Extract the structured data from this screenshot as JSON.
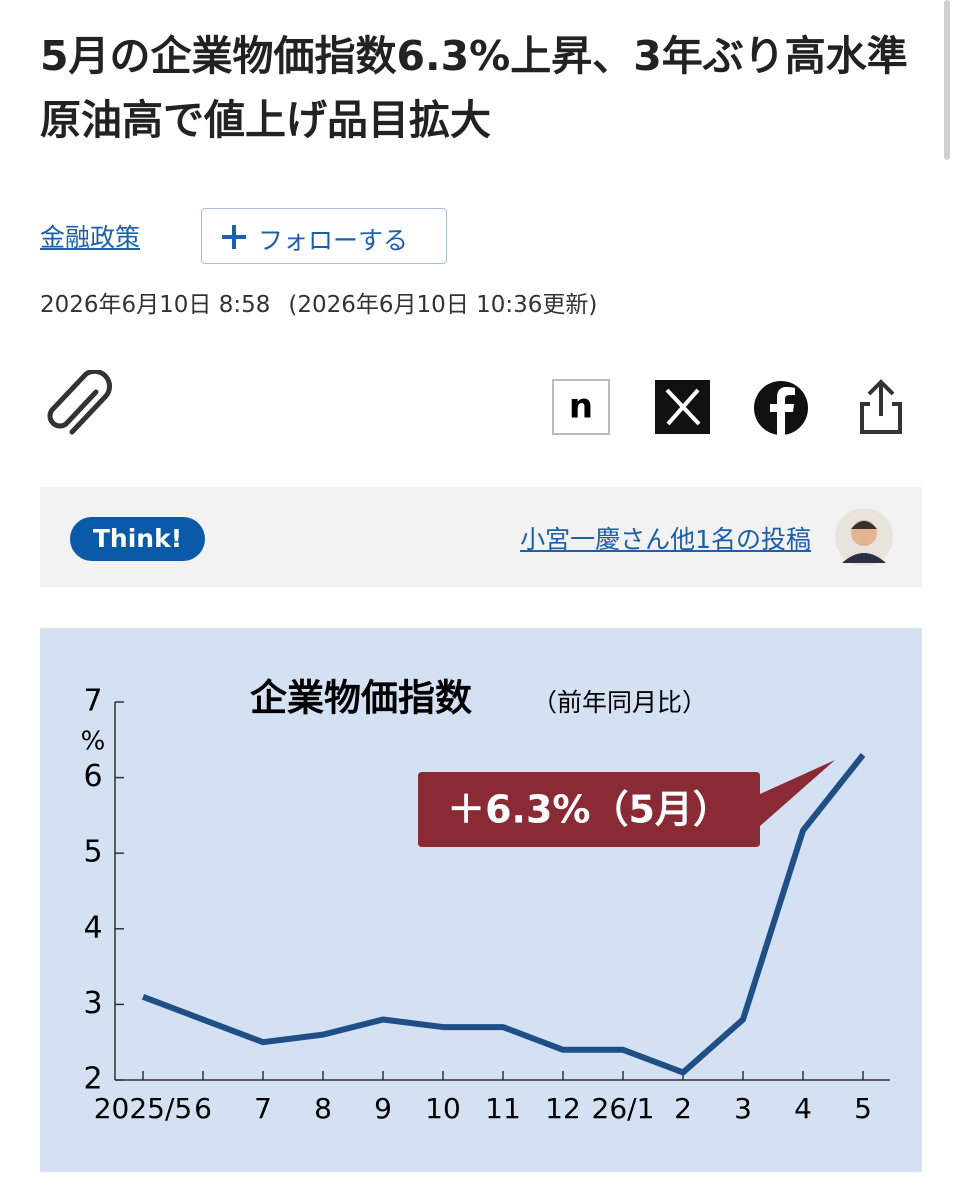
{
  "article": {
    "headline": "5月の企業物価指数6.3%上昇、3年ぶり高水準　原油高で値上げ品目拡大",
    "topic": "金融政策",
    "follow": "フォローする",
    "published": "2026年6月10日 8:58",
    "updated": "(2026年6月10日 10:36更新)",
    "note_icon": "n",
    "think": {
      "badge": "Think!",
      "link": "小宮一慶さん他1名の投稿"
    }
  },
  "chart_data": {
    "type": "line",
    "title": "企業物価指数",
    "subtitle": "（前年同月比）",
    "ylabel": "%",
    "annotation": "＋6.3%（5月）",
    "categories": [
      "2025/5",
      "6",
      "7",
      "8",
      "9",
      "10",
      "11",
      "12",
      "26/1",
      "2",
      "3",
      "4",
      "5"
    ],
    "series": [
      {
        "color": "#1f4f86",
        "values": [
          3.1,
          2.8,
          2.5,
          2.6,
          2.8,
          2.7,
          2.7,
          2.4,
          2.4,
          2.1,
          2.8,
          5.3,
          6.3
        ]
      }
    ],
    "ylim": [
      2,
      7
    ],
    "yticks": [
      2,
      3,
      4,
      5,
      6,
      7
    ],
    "background": "#d3e1f3",
    "annotation_color": "#8a2a35"
  }
}
